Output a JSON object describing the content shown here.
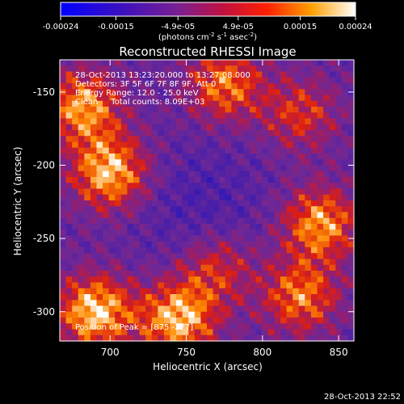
{
  "chart_data": {
    "type": "heatmap",
    "title": "Reconstructed RHESSI Image",
    "xlabel": "Heliocentric X (arcsec)",
    "ylabel": "Heliocentric Y (arcsec)",
    "xlim": [
      667,
      860
    ],
    "ylim": [
      -320,
      -128
    ],
    "x_ticks": [
      700,
      750,
      800,
      850
    ],
    "y_ticks": [
      -150,
      -200,
      -250,
      -300
    ],
    "colorbar": {
      "range": [
        -0.00024,
        0.00024
      ],
      "tick_values": [
        -0.00024,
        -0.00015,
        -4.9e-05,
        4.9e-05,
        0.00015,
        0.00024
      ],
      "tick_labels": [
        "-0.00024",
        "-0.00015",
        "-4.9e-05",
        "4.9e-05",
        "0.00015",
        "0.00024"
      ],
      "unit_label": "(photons cm",
      "unit_exp1": "-2",
      "unit_mid": " s",
      "unit_exp2": "-1",
      "unit_mid2": " asec",
      "unit_exp3": "-2",
      "unit_close": ")"
    },
    "annotations": {
      "time_range": "28-Oct-2013 13:23:20.000 to 13:27:08.000",
      "detectors": "Detectors: 3F 5F 6F 7F 8F 9F, Att 0",
      "energy": "Energy Range: 12.0 - 25.0 keV",
      "method": "Clean     Total counts: 8.09E+03",
      "peak": "Position of Peak = [875 -277]"
    },
    "timestamp": "28-Oct-2013 22:52",
    "colors": {
      "low": "#1010d0",
      "mid_low": "#6a2a9a",
      "mid": "#9a2a7a",
      "mid_high": "#e02010",
      "high": "#ff9a00",
      "top": "#ffffff"
    },
    "intensity_sources": [
      {
        "x": 700,
        "y": -205,
        "strength": 0.95
      },
      {
        "x": 682,
        "y": -160,
        "strength": 0.85
      },
      {
        "x": 690,
        "y": -300,
        "strength": 1.0
      },
      {
        "x": 745,
        "y": -305,
        "strength": 0.95
      },
      {
        "x": 775,
        "y": -145,
        "strength": 0.75
      },
      {
        "x": 838,
        "y": -240,
        "strength": 0.85
      },
      {
        "x": 825,
        "y": -290,
        "strength": 0.75
      },
      {
        "x": 825,
        "y": -165,
        "strength": 0.55
      },
      {
        "x": 770,
        "y": -270,
        "strength": 0.55
      }
    ]
  }
}
